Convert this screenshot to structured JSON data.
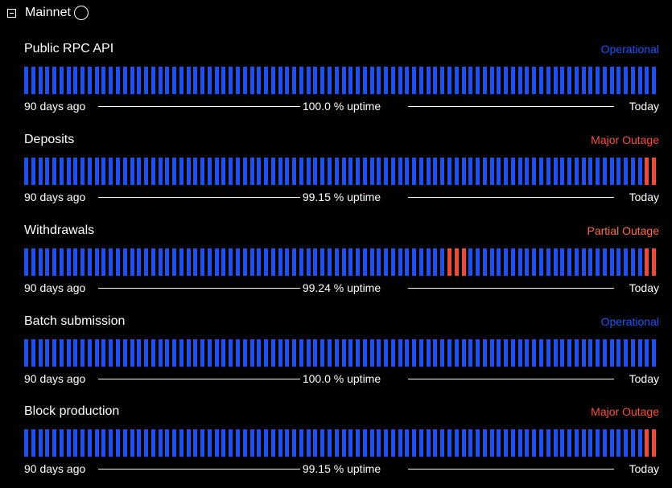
{
  "section": {
    "title": "Mainnet"
  },
  "colors": {
    "operational": "#1a55ff",
    "major": "#ff4e3a",
    "partial": "#ff6b45",
    "bar_ok": "#1e4ff0",
    "bar_bad": "#ee4a3a"
  },
  "components": [
    {
      "name": "Public RPC API",
      "status": "Operational",
      "status_kind": "operational",
      "uptime": "100.0 % uptime",
      "start": "90 days ago",
      "end": "Today",
      "outage_days": []
    },
    {
      "name": "Deposits",
      "status": "Major Outage",
      "status_kind": "major",
      "uptime": "99.15 % uptime",
      "start": "90 days ago",
      "end": "Today",
      "outage_days": [
        88,
        89
      ]
    },
    {
      "name": "Withdrawals",
      "status": "Partial Outage",
      "status_kind": "partial",
      "uptime": "99.24 % uptime",
      "start": "90 days ago",
      "end": "Today",
      "outage_days": [
        60,
        61,
        62,
        88,
        89
      ]
    },
    {
      "name": "Batch submission",
      "status": "Operational",
      "status_kind": "operational",
      "uptime": "100.0 % uptime",
      "start": "90 days ago",
      "end": "Today",
      "outage_days": []
    },
    {
      "name": "Block production",
      "status": "Major Outage",
      "status_kind": "major",
      "uptime": "99.15 % uptime",
      "start": "90 days ago",
      "end": "Today",
      "outage_days": [
        88,
        89
      ]
    }
  ]
}
